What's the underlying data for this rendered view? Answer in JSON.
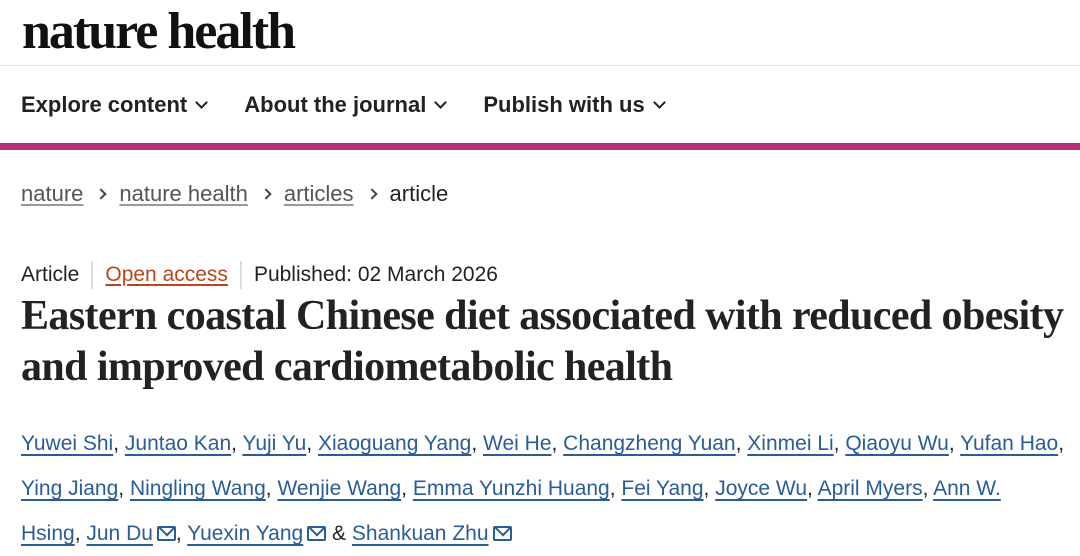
{
  "brand": {
    "logo": "nature health",
    "accent": "#b7317b"
  },
  "nav": {
    "items": [
      "Explore content",
      "About the journal",
      "Publish with us"
    ]
  },
  "breadcrumb": {
    "items": [
      "nature",
      "nature health",
      "articles"
    ],
    "current": "article"
  },
  "article": {
    "type": "Article",
    "access": "Open access",
    "published": "Published: 02 March 2026",
    "title": "Eastern coastal Chinese diet associated with reduced obesity and improved cardiometabolic health",
    "authors": [
      {
        "name": "Yuwei Shi"
      },
      {
        "name": "Juntao Kan"
      },
      {
        "name": "Yuji Yu"
      },
      {
        "name": "Xiaoguang Yang"
      },
      {
        "name": "Wei He"
      },
      {
        "name": "Changzheng Yuan"
      },
      {
        "name": "Xinmei Li"
      },
      {
        "name": "Qiaoyu Wu"
      },
      {
        "name": "Yufan Hao"
      },
      {
        "name": "Ying Jiang"
      },
      {
        "name": "Ningling Wang"
      },
      {
        "name": "Wenjie Wang"
      },
      {
        "name": "Emma Yunzhi Huang"
      },
      {
        "name": "Fei Yang"
      },
      {
        "name": "Joyce Wu"
      },
      {
        "name": "April Myers"
      },
      {
        "name": "Ann W. Hsing"
      },
      {
        "name": "Jun Du",
        "email": true
      },
      {
        "name": "Yuexin Yang",
        "email": true
      },
      {
        "name": "Shankuan Zhu",
        "email": true
      }
    ],
    "last_separator": "&"
  }
}
